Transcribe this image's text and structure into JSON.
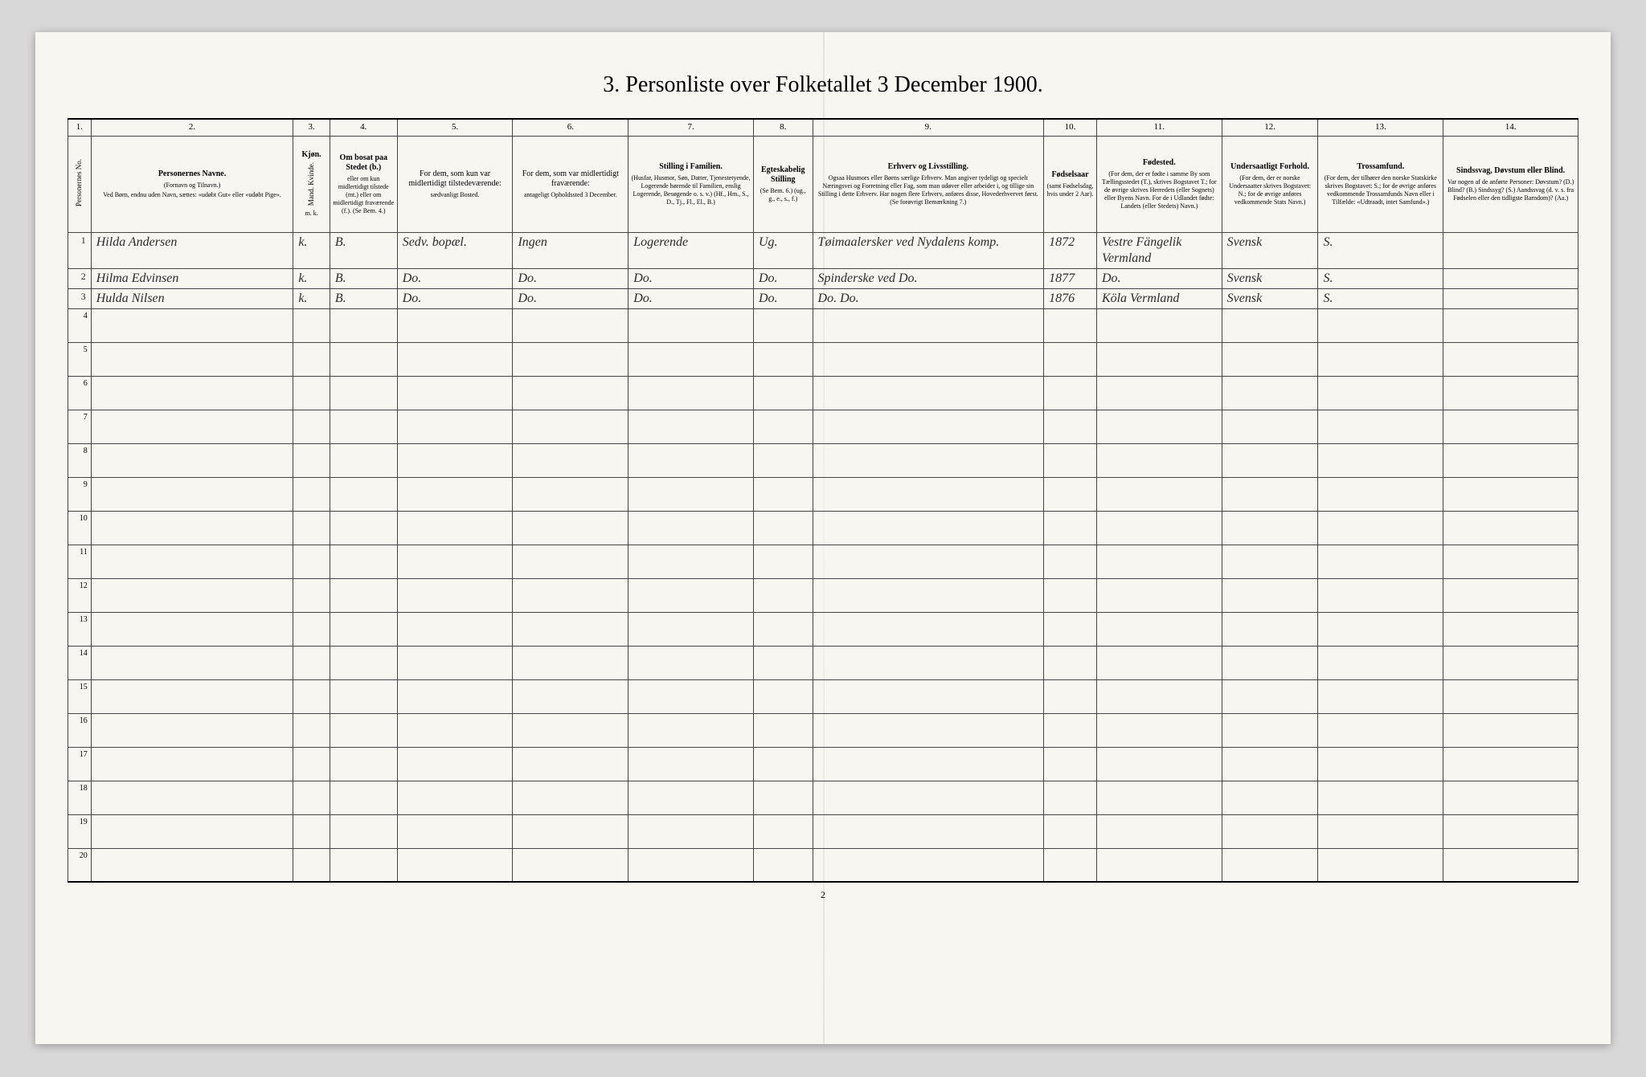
{
  "title": "3. Personliste over Folketallet 3 December 1900.",
  "page_number": "2",
  "columns": {
    "numbers": [
      "1.",
      "2.",
      "3.",
      "4.",
      "5.",
      "6.",
      "7.",
      "8.",
      "9.",
      "10.",
      "11.",
      "12.",
      "13.",
      "14."
    ],
    "headers": {
      "c1": "Personernes No.",
      "c2_title": "Personernes Navne.",
      "c2_sub1": "(Fornavn og Tilnavn.)",
      "c2_sub2": "Ved Børn, endnu uden Navn, sættes: «udøbt Gut» eller «udøbt Pige».",
      "c3_title": "Kjøn.",
      "c3_sub": "Mand. Kvinde.",
      "c3_mk": "m.  k.",
      "c4_title": "Om bosat paa Stedet (b.)",
      "c4_sub": "eller om kun midlertidigt tilstede (mt.) eller om midlertidigt fraværende (f.). (Se Bem. 4.)",
      "c5_title": "For dem, som kun var midlertidigt tilstedeværende:",
      "c5_sub": "sædvanligt Bosted.",
      "c6_title": "For dem, som var midlertidigt fraværende:",
      "c6_sub": "antageligt Opholdssted 3 December.",
      "c7_title": "Stilling i Familien.",
      "c7_sub": "(Husfar, Husmor, Søn, Datter, Tjenestetyende, Logerende hørende til Familien, enslig Logerende, Besøgende o. s. v.) (Hf., Hm., S., D., Tj., Fl., El., B.)",
      "c8_title": "Egteskabelig Stilling",
      "c8_sub": "(Se Bem. 6.) (ug., g., e., s., f.)",
      "c9_title": "Erhverv og Livsstilling.",
      "c9_sub": "Ogsaa Husmors eller Børns særlige Erhverv. Man angiver tydeligt og specielt Næringsvei og Forretning eller Fag, som man udøver eller arbeider i, og tillige sin Stilling i dette Erhverv. Har nogen flere Erhverv, anføres disse, Hovederhvervet først. (Se forøvrigt Bemærkning 7.)",
      "c10_title": "Fødselsaar",
      "c10_sub": "(samt Fødselsdag, hvis under 2 Aar).",
      "c11_title": "Fødested.",
      "c11_sub": "(For dem, der er fødte i samme By som Tællingsstedet (T.), skrives Bogstavet T.; for de øvrige skrives Herredets (eller Sognets) eller Byens Navn. For de i Udlandet fødte: Landets (eller Stedets) Navn.)",
      "c12_title": "Undersaatligt Forhold.",
      "c12_sub": "(For dem, der er norske Undersaatter skrives Bogstavet: N.; for de øvrige anføres vedkommende Stats Navn.)",
      "c13_title": "Trossamfund.",
      "c13_sub": "(For dem, der tilhører den norske Statskirke skrives Bogstavet: S.; for de øvrige anføres vedkommende Trossamfunds Navn eller i Tilfælde: «Udtraadt, intet Samfund».)",
      "c14_title": "Sindssvag, Døvstum eller Blind.",
      "c14_sub": "Var nogen af de anførte Personer: Døvstum? (D.) Blind? (B.) Sindssyg? (S.) Aandssvag (d. v. s. fra Fødselen eller den tidligste Barndom)? (Aa.)"
    }
  },
  "rows": [
    {
      "num": "1",
      "name": "Hilda Andersen",
      "sex": "k.",
      "res": "B.",
      "temp": "Sedv. bopæl.",
      "abs": "Ingen",
      "family": "Logerende",
      "marital": "Ug.",
      "occupation": "Tøimaalersker ved Nydalens komp.",
      "year": "1872",
      "birthplace": "Vestre Fängelik Vermland",
      "subject": "Svensk",
      "faith": "S.",
      "disability": ""
    },
    {
      "num": "2",
      "name": "Hilma Edvinsen",
      "sex": "k.",
      "res": "B.",
      "temp": "Do.",
      "abs": "Do.",
      "family": "Do.",
      "marital": "Do.",
      "occupation": "Spinderske ved   Do.",
      "year": "1877",
      "birthplace": "Do.",
      "subject": "Svensk",
      "faith": "S.",
      "disability": ""
    },
    {
      "num": "3",
      "name": "Hulda Nilsen",
      "sex": "k.",
      "res": "B.",
      "temp": "Do.",
      "abs": "Do.",
      "family": "Do.",
      "marital": "Do.",
      "occupation": "Do.         Do.",
      "year": "1876",
      "birthplace": "Köla Vermland",
      "subject": "Svensk",
      "faith": "S.",
      "disability": ""
    }
  ],
  "empty_rows": [
    "4",
    "5",
    "6",
    "7",
    "8",
    "9",
    "10",
    "11",
    "12",
    "13",
    "14",
    "15",
    "16",
    "17",
    "18",
    "19",
    "20"
  ]
}
